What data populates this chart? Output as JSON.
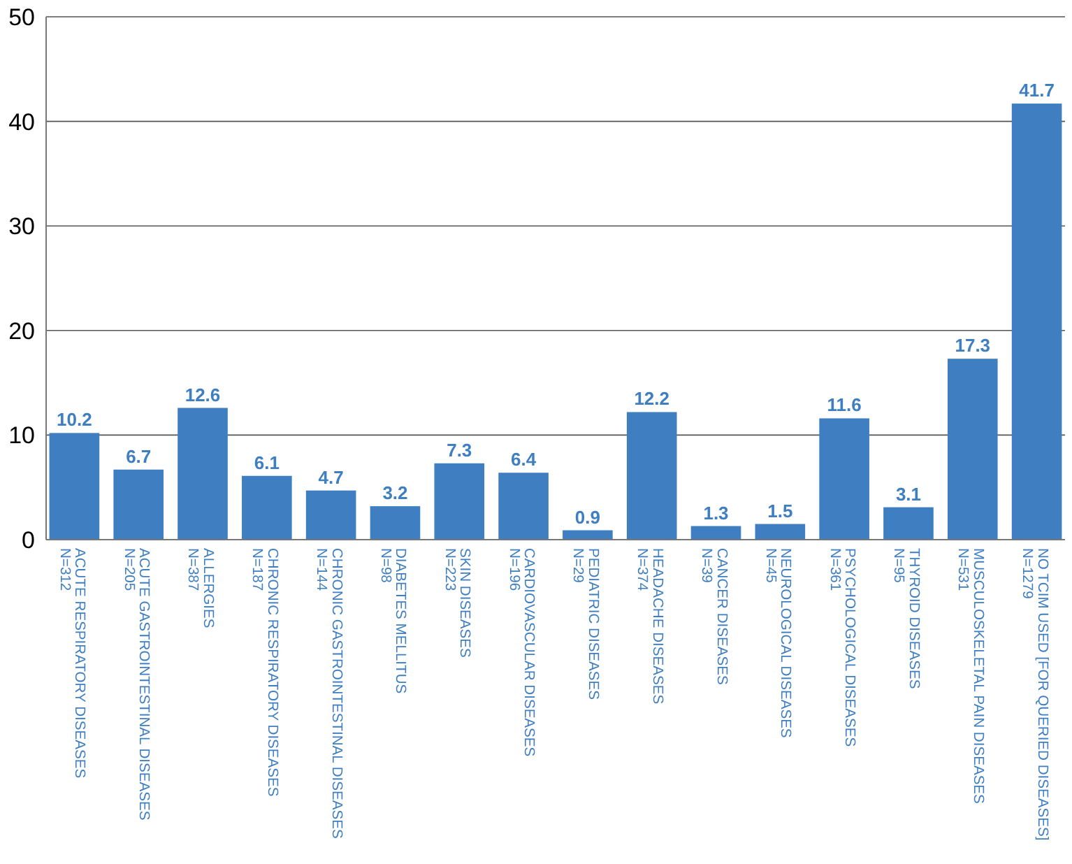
{
  "chart_data": {
    "type": "bar",
    "categories": [
      "ACUTE RESPIRATORY DISEASES\nN=312",
      "ACUTE GASTROINTESTINAL DISEASES\nN=205",
      "ALLERGIES\nN=387",
      "CHRONIC RESPIRATORY DISEASES\nN=187",
      "CHRONIC GASTROINTESTINAL DISEASES\nN=144",
      "DIABETES MELLITUS\nN=98",
      "SKIN DISEASES\nN=223",
      "CARDIOVASCULAR DISEASES\nN=196",
      "PEDIATRIC DISEASES\nN=29",
      "HEADACHE DISEASES\nN=374",
      "CANCER DISEASES\nN=39",
      "NEUROLOGICAL DISEASES\nN=45",
      "PSYCHOLOGICAL DISEASES\nN=361",
      "THYROID DISEASES\nN=95",
      "MUSCULOSKELETAL PAIN DISEASES\nN=531",
      "NO TCIM USED  [FOR QUERIED DISEASES]\nN=1279"
    ],
    "values": [
      10.2,
      6.7,
      12.6,
      6.1,
      4.7,
      3.2,
      7.3,
      6.4,
      0.9,
      12.2,
      1.3,
      1.5,
      11.6,
      3.1,
      17.3,
      41.7
    ],
    "color": "#3f7fc1",
    "ylim": [
      0,
      50
    ],
    "yticks": [
      0,
      10,
      20,
      30,
      40,
      50
    ],
    "grid": "y",
    "data_labels": true
  }
}
